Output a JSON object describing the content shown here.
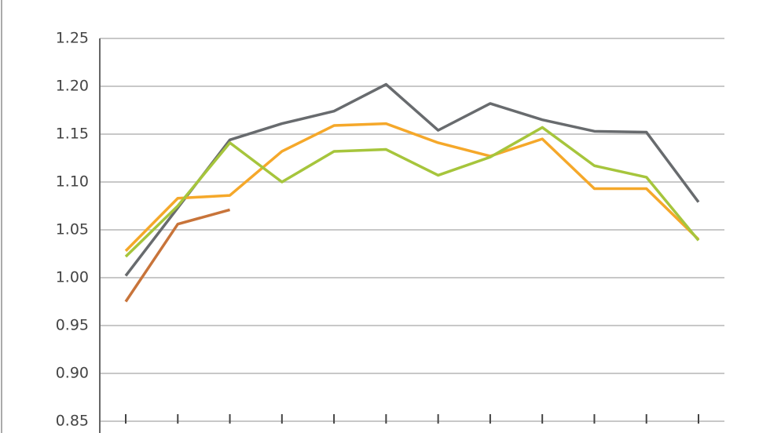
{
  "chart_data": {
    "type": "line",
    "categories": [
      null,
      null,
      null,
      null,
      null,
      null,
      null,
      null,
      null,
      null,
      null,
      null
    ],
    "series": [
      {
        "color": "#686b6e",
        "values": [
          1.002,
          1.073,
          1.144,
          1.161,
          1.174,
          1.202,
          1.154,
          1.182,
          1.165,
          1.153,
          1.152,
          1.079
        ]
      },
      {
        "color": "#f5a82a",
        "values": [
          1.028,
          1.083,
          1.086,
          1.132,
          1.159,
          1.161,
          1.141,
          1.127,
          1.145,
          1.093,
          1.093,
          1.04
        ]
      },
      {
        "color": "#a6c53c",
        "values": [
          1.022,
          1.075,
          1.141,
          1.1,
          1.132,
          1.134,
          1.107,
          1.126,
          1.157,
          1.117,
          1.105,
          1.039
        ]
      },
      {
        "color": "#c8743a",
        "values": [
          0.975,
          1.056,
          1.071,
          null,
          null,
          null,
          null,
          null,
          null,
          null,
          null,
          null
        ]
      }
    ],
    "ylim": [
      0.85,
      1.25
    ],
    "yticks": [
      0.85,
      {
        "value": 0.9,
        "label": "0.90"
      },
      0.95,
      {
        "value": 1.0,
        "label": "1.00"
      },
      1.05,
      {
        "value": 1.1,
        "label": "1.10"
      },
      1.15,
      {
        "value": 1.2,
        "label": "1.20"
      },
      1.25
    ],
    "grid": true
  }
}
